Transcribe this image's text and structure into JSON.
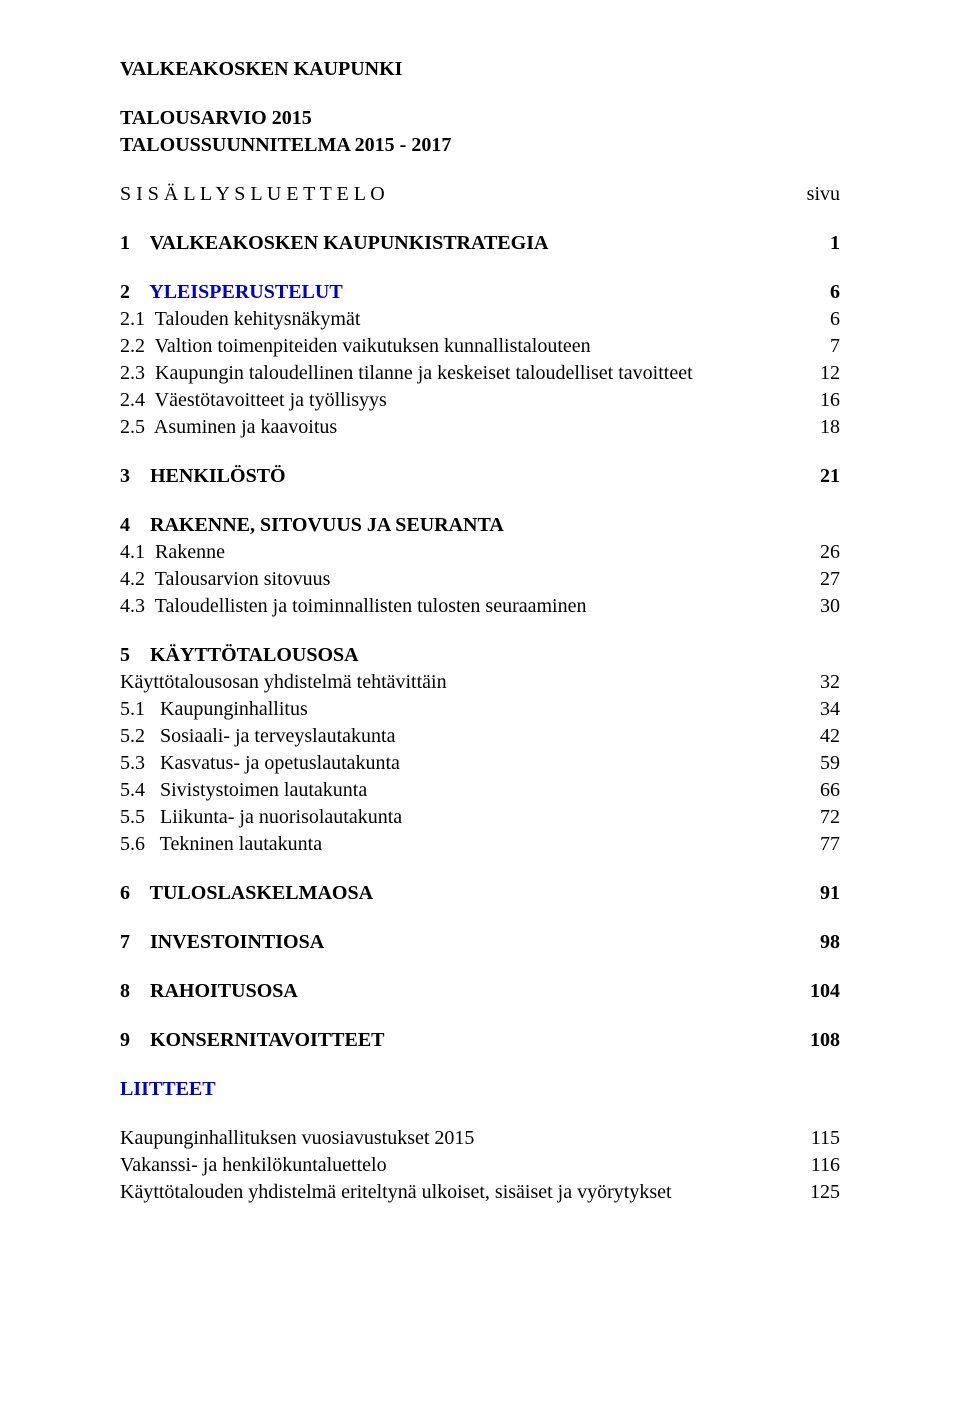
{
  "org": "VALKEAKOSKEN KAUPUNKI",
  "doc_title_1": "TALOUSARVIO 2015",
  "doc_title_2": "TALOUSSUUNNITELMA 2015 - 2017",
  "toc_header_left": "S I S Ä L L Y S L U E T T E L O",
  "toc_header_right": "sivu",
  "sections": {
    "s1": {
      "num": "1",
      "title": "VALKEAKOSKEN KAUPUNKISTRATEGIA",
      "page": "1"
    },
    "s2": {
      "num": "2",
      "title": "YLEISPERUSTELUT",
      "page": "6",
      "subs": [
        {
          "num": "2.1",
          "title": "Talouden kehitysnäkymät",
          "page": "6"
        },
        {
          "num": "2.2",
          "title": "Valtion toimenpiteiden vaikutuksen kunnallistalouteen",
          "page": "7"
        },
        {
          "num": "2.3",
          "title": "Kaupungin taloudellinen tilanne ja keskeiset taloudelliset tavoitteet",
          "page": "12"
        },
        {
          "num": "2.4",
          "title": "Väestötavoitteet ja työllisyys",
          "page": "16"
        },
        {
          "num": "2.5",
          "title": "Asuminen ja kaavoitus",
          "page": "18"
        }
      ]
    },
    "s3": {
      "num": "3",
      "title": "HENKILÖSTÖ",
      "page": "21"
    },
    "s4": {
      "num": "4",
      "title": "RAKENNE, SITOVUUS JA SEURANTA",
      "page": "",
      "subs": [
        {
          "num": "4.1",
          "title": "Rakenne",
          "page": "26"
        },
        {
          "num": "4.2",
          "title": "Talousarvion sitovuus",
          "page": "27"
        },
        {
          "num": "4.3",
          "title": "Taloudellisten ja toiminnallisten tulosten seuraaminen",
          "page": "30"
        }
      ]
    },
    "s5": {
      "num": "5",
      "title": "KÄYTTÖTALOUSOSA",
      "page": "",
      "intro": {
        "title": "Käyttötalousosan yhdistelmä tehtävittäin",
        "page": "32"
      },
      "subs": [
        {
          "num": "5.1",
          "title": "Kaupunginhallitus",
          "page": "34"
        },
        {
          "num": "5.2",
          "title": "Sosiaali- ja terveyslautakunta",
          "page": "42"
        },
        {
          "num": "5.3",
          "title": "Kasvatus- ja opetuslautakunta",
          "page": "59"
        },
        {
          "num": "5.4",
          "title": "Sivistystoimen lautakunta",
          "page": "66"
        },
        {
          "num": "5.5",
          "title": "Liikunta- ja nuorisolautakunta",
          "page": "72"
        },
        {
          "num": "5.6",
          "title": "Tekninen lautakunta",
          "page": "77"
        }
      ]
    },
    "s6": {
      "num": "6",
      "title": "TULOSLASKELMAOSA",
      "page": "91"
    },
    "s7": {
      "num": "7",
      "title": "INVESTOINTIOSA",
      "page": "98"
    },
    "s8": {
      "num": "8",
      "title": "RAHOITUSOSA",
      "page": "104"
    },
    "s9": {
      "num": "9",
      "title": "KONSERNITAVOITTEET",
      "page": "108"
    }
  },
  "appendix": {
    "title": "LIITTEET",
    "items": [
      {
        "title": "Kaupunginhallituksen vuosiavustukset 2015",
        "page": "115"
      },
      {
        "title": "Vakanssi- ja henkilökuntaluettelo",
        "page": "116"
      },
      {
        "title": "Käyttötalouden yhdistelmä eriteltynä ulkoiset, sisäiset ja vyörytykset",
        "page": "125"
      }
    ]
  }
}
